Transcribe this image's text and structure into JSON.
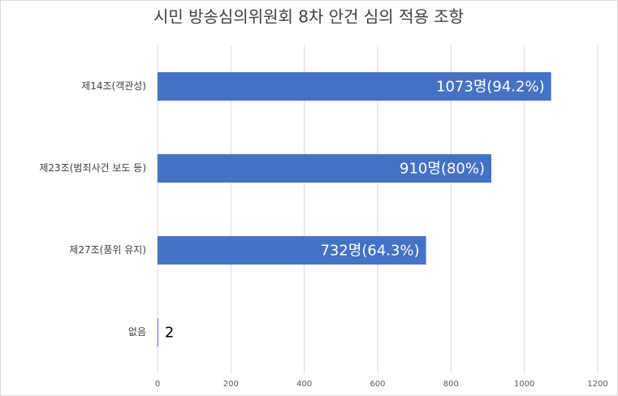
{
  "chart_data": {
    "type": "bar",
    "orientation": "horizontal",
    "title": "시민 방송심의위원회 8차 안건 심의 적용 조항",
    "categories": [
      "제14조(객관성)",
      "제23조(범죄사건 보도 등)",
      "제27조(품위 유지)",
      "없음"
    ],
    "values": [
      1073,
      910,
      732,
      2
    ],
    "value_labels": [
      "1073명(94.2%)",
      "910명(80%)",
      "732명(64.3%)",
      "2"
    ],
    "color": "#4472c4",
    "xlim": [
      0,
      1200
    ],
    "xticks": [
      0,
      200,
      400,
      600,
      800,
      1000,
      1200
    ],
    "grid": true
  }
}
